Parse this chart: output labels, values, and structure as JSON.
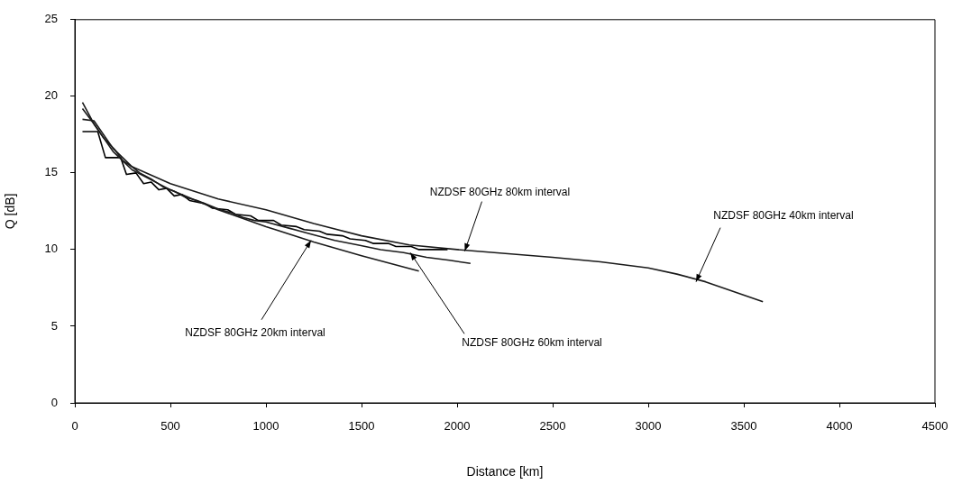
{
  "chart_data": {
    "type": "line",
    "xlabel": "Distance [km]",
    "ylabel": "Q [dB]",
    "xlim": [
      0,
      4500
    ],
    "xticks": [
      0,
      500,
      1000,
      1500,
      2000,
      2500,
      3000,
      3500,
      4000,
      4500
    ],
    "ylim": [
      0,
      25
    ],
    "yticks": [
      0,
      5,
      10,
      15,
      20,
      25
    ],
    "grid": false,
    "legend": false,
    "marker": "none",
    "line_style": "solid",
    "series": [
      {
        "color": "#1a1a1a",
        "x": [
          40,
          100,
          200,
          300,
          500,
          750,
          1000,
          1250,
          1500,
          1800
        ],
        "values": [
          19.6,
          18.2,
          16.4,
          15.2,
          13.9,
          12.6,
          11.5,
          10.5,
          9.6,
          8.6
        ]
      },
      {
        "color": "#1a1a1a",
        "x": [
          40,
          100,
          200,
          300,
          500,
          750,
          1000,
          1250,
          1500,
          1750,
          2000,
          2500,
          2750,
          3000,
          3150,
          3300,
          3600
        ],
        "values": [
          18.5,
          18.4,
          16.6,
          15.4,
          14.3,
          13.3,
          12.6,
          11.7,
          10.9,
          10.3,
          10.0,
          9.5,
          9.2,
          8.8,
          8.4,
          7.9,
          6.6
        ]
      },
      {
        "color": "#1a1a1a",
        "x": [
          40,
          100,
          150,
          210,
          250,
          300,
          340,
          400,
          460,
          520,
          580,
          640,
          700,
          760,
          820,
          880,
          940,
          1000,
          1120,
          1240,
          1360,
          1480,
          1600,
          1720,
          1840,
          1960,
          2070
        ],
        "values": [
          19.2,
          18.2,
          17.3,
          16.5,
          15.8,
          15.4,
          15.0,
          14.6,
          14.1,
          13.8,
          13.4,
          13.2,
          12.9,
          12.6,
          12.4,
          12.1,
          11.9,
          11.8,
          11.4,
          11.0,
          10.6,
          10.3,
          10.0,
          9.8,
          9.5,
          9.3,
          9.1
        ]
      },
      {
        "color": "#000000",
        "x": [
          40,
          120,
          160,
          240,
          270,
          320,
          360,
          400,
          440,
          480,
          520,
          560,
          600,
          680,
          720,
          800,
          840,
          920,
          960,
          1040,
          1080,
          1160,
          1200,
          1280,
          1320,
          1400,
          1440,
          1520,
          1560,
          1640,
          1680,
          1760,
          1800,
          1950
        ],
        "values": [
          17.7,
          17.7,
          16.0,
          16.0,
          14.9,
          15.0,
          14.3,
          14.4,
          13.9,
          14.0,
          13.5,
          13.6,
          13.2,
          13.0,
          12.7,
          12.6,
          12.3,
          12.2,
          11.9,
          11.9,
          11.6,
          11.5,
          11.3,
          11.2,
          11.0,
          10.9,
          10.7,
          10.6,
          10.4,
          10.4,
          10.2,
          10.2,
          10.0,
          10.0
        ]
      }
    ],
    "annotations": [
      {
        "text": "NZDSF 80GHz 20km interval",
        "x": 1236,
        "y": 10.6
      },
      {
        "text": "NZDSF 80GHz 60km interval",
        "x": 1755,
        "y": 9.8
      },
      {
        "text": "NZDSF 80GHz 80km interval",
        "x": 2040,
        "y": 9.9
      },
      {
        "text": "NZDSF 80GHz 40km interval",
        "x": 3250,
        "y": 7.9
      }
    ]
  }
}
